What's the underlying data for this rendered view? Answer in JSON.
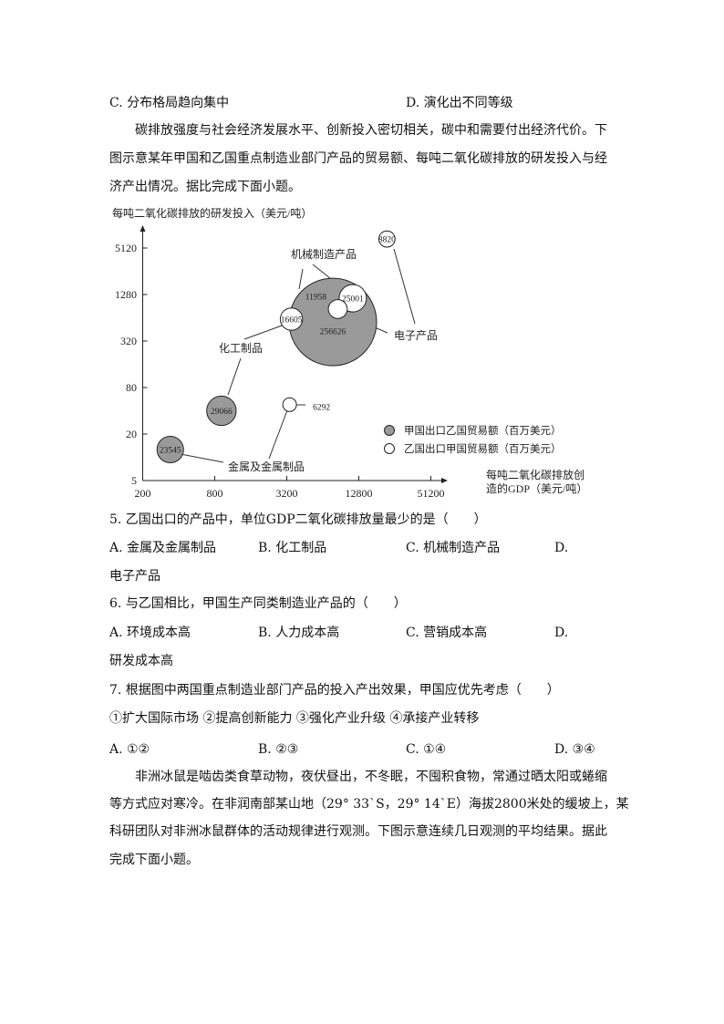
{
  "prev_options": {
    "c": "C. 分布格局趋向集中",
    "d": "D. 演化出不同等级"
  },
  "intro": [
    "碳排放强度与社会经济发展水平、创新投入密切相关，碳中和需要付出经济代价。下",
    "图示意某年甲国和乙国重点制造业部门产品的贸易额、每吨二氧化碳排放的研发投入与经",
    "济产出情况。据比完成下面小题。"
  ],
  "chart_data": {
    "type": "scatter",
    "subtype": "bubble",
    "ylabel": "每吨二氧化碳排放的研发投入（美元/吨）",
    "xlabel": [
      "每吨二氧化碳排放创",
      "造的GDP（美元/吨）"
    ],
    "x_scale": "log",
    "y_scale": "log",
    "x_ticks": [
      "200",
      "800",
      "3200",
      "12800",
      "51200"
    ],
    "y_ticks": [
      "5",
      "20",
      "80",
      "320",
      "1280",
      "5120"
    ],
    "legend": [
      "甲国出口乙国贸易额（百万美元）",
      "乙国出口甲国贸易额（百万美元）"
    ],
    "legend_placement": "bottom-right",
    "colors": {
      "jia": "#9a9a9a",
      "yi": "#ffffff"
    },
    "series": [
      {
        "name": "甲国出口乙国贸易额（百万美元）",
        "points": [
          {
            "category": "金属及金属制品",
            "x": 340,
            "y": 12.6,
            "size": 23545,
            "label": "23545"
          },
          {
            "category": "化工制品",
            "x": 910,
            "y": 40,
            "size": 29066,
            "label": "29066"
          },
          {
            "category": "机械制造产品",
            "x": 7760,
            "y": 565,
            "size": 256626,
            "label": "256626"
          }
        ]
      },
      {
        "name": "乙国出口甲国贸易额（百万美元）",
        "points": [
          {
            "category": "金属及金属制品",
            "x": 3380,
            "y": 48,
            "size": 6292,
            "label": "6292"
          },
          {
            "category": "化工制品",
            "x": 3500,
            "y": 615,
            "size": 16605,
            "label": "16605"
          },
          {
            "category": "电子产品",
            "x": 8540,
            "y": 830,
            "size": 11958,
            "label": "11958"
          },
          {
            "category": "机械制造产品",
            "x": 11400,
            "y": 1145,
            "size": 25001,
            "label": "25001"
          },
          {
            "category": "电子产品",
            "x": 22000,
            "y": 6700,
            "size": 8820,
            "label": "8820"
          }
        ]
      }
    ],
    "category_labels": [
      "机械制造产品",
      "电子产品",
      "化工制品",
      "金属及金属制品"
    ]
  },
  "questions": [
    {
      "stem": "5. 乙国出口的产品中，单位GDP二氧化碳排放量最少的是（　　）",
      "options": [
        "A. 金属及金属制品",
        "B. 化工制品",
        "C. 机械制造产品",
        "D."
      ],
      "wrap": "电子产品"
    },
    {
      "stem": "6. 与乙国相比，甲国生产同类制造业产品的（　　）",
      "options": [
        "A. 环境成本高",
        "B. 人力成本高",
        "C. 营销成本高",
        "D."
      ],
      "wrap": "研发成本高"
    },
    {
      "stem": "7. 根据图中两国重点制造业部门产品的投入产出效果，甲国应优先考虑（　　）",
      "sub": "①扩大国际市场 ②提高创新能力 ③强化产业升级 ④承接产业转移",
      "options": [
        "A. ①②",
        "B. ②③",
        "C. ①④",
        "D. ③④"
      ]
    }
  ],
  "outro": [
    "非洲冰鼠是啮齿类食草动物，夜伏昼出，不冬眠，不囤积食物，常通过晒太阳或蜷缩",
    "等方式应对寒冷。在非润南部某山地（29° 33`S，29° 14`E）海拔2800米处的缓坡上，某",
    "科研团队对非洲冰鼠群体的活动规律进行观测。下图示意连续几日观测的平均结果。据此",
    "完成下面小题。"
  ]
}
